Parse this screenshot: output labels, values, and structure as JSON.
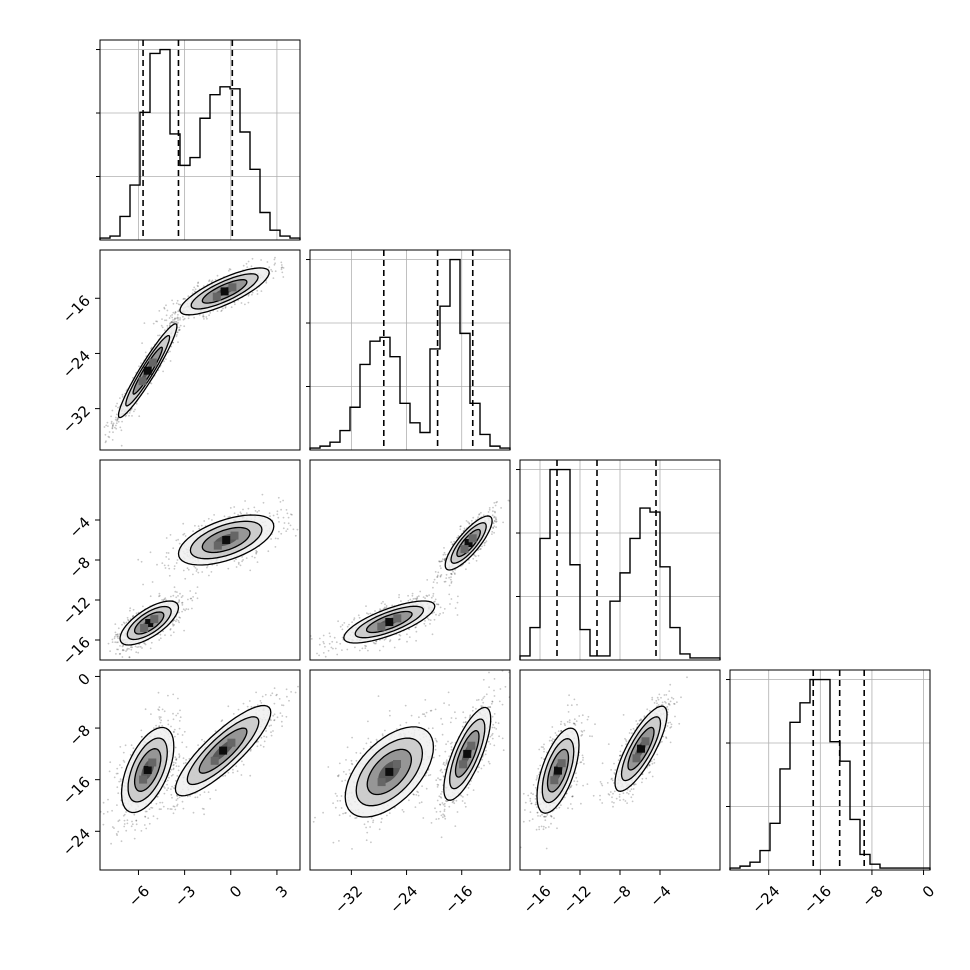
{
  "chart_data": {
    "type": "corner",
    "title": "",
    "n_params": 4,
    "params": [
      {
        "label": "",
        "range": [
          -8.5,
          4.5
        ],
        "ticks": [
          -6,
          -3,
          0,
          3
        ],
        "tick_labels": [
          "−6",
          "−3",
          "0",
          "3"
        ],
        "quantiles": [
          -5.7,
          -3.4,
          0.1
        ]
      },
      {
        "label": "",
        "range": [
          -38,
          -9
        ],
        "ticks": [
          -32,
          -24,
          -16
        ],
        "tick_labels": [
          "−32",
          "−24",
          "−16"
        ],
        "quantiles": [
          -27.3,
          -19.5,
          -14.4
        ]
      },
      {
        "label": "",
        "range": [
          -18,
          2
        ],
        "ticks": [
          -16,
          -12,
          -8,
          -4
        ],
        "tick_labels": [
          "−16",
          "−12",
          "−8",
          "−4"
        ],
        "quantiles": [
          -14.3,
          -10.3,
          -4.4
        ]
      },
      {
        "label": "",
        "range": [
          -30,
          1
        ],
        "ticks": [
          -24,
          -16,
          -8,
          0
        ],
        "tick_labels": [
          "−24",
          "−16",
          "−8",
          "0"
        ],
        "quantiles": [
          -17.1,
          -13.0,
          -9.2
        ]
      }
    ],
    "hist_grid": true,
    "hist_y_ticks_count": 3,
    "histograms": [
      {
        "param": 0,
        "bin_start": -8.5,
        "bin_width": 0.65,
        "counts": [
          1,
          2,
          12,
          28,
          65,
          95,
          97,
          54,
          38,
          42,
          62,
          74,
          78,
          77,
          55,
          36,
          14,
          5,
          2,
          1
        ]
      },
      {
        "param": 1,
        "bin_start": -38.0,
        "bin_width": 1.45,
        "counts": [
          1,
          2,
          4,
          10,
          22,
          44,
          56,
          58,
          48,
          24,
          14,
          9,
          52,
          74,
          98,
          60,
          24,
          8,
          2,
          1
        ]
      },
      {
        "param": 2,
        "bin_start": -18.0,
        "bin_width": 1.0,
        "counts": [
          2,
          16,
          60,
          94,
          94,
          47,
          15,
          2,
          2,
          29,
          43,
          60,
          75,
          73,
          46,
          16,
          3,
          1,
          1,
          1
        ]
      },
      {
        "param": 3,
        "bin_start": -30.0,
        "bin_width": 1.55,
        "counts": [
          1,
          2,
          4,
          10,
          24,
          52,
          76,
          86,
          98,
          98,
          66,
          56,
          26,
          8,
          3,
          1,
          1,
          1,
          1,
          1
        ]
      }
    ],
    "pairs": [
      {
        "x_param": 0,
        "y_param": 1,
        "components": [
          {
            "mean": [
              -5.4,
              -26.5
            ],
            "sd": [
              0.95,
              3.4
            ],
            "corr": 0.95,
            "weight": 0.5
          },
          {
            "mean": [
              -0.4,
              -15.0
            ],
            "sd": [
              1.45,
              1.7
            ],
            "corr": 0.8,
            "weight": 0.5
          }
        ]
      },
      {
        "x_param": 0,
        "y_param": 2,
        "components": [
          {
            "mean": [
              -5.3,
              -14.3
            ],
            "sd": [
              0.95,
              1.1
            ],
            "corr": 0.7,
            "weight": 0.5
          },
          {
            "mean": [
              -0.3,
              -6.0
            ],
            "sd": [
              1.55,
              1.25
            ],
            "corr": 0.55,
            "weight": 0.5
          }
        ]
      },
      {
        "x_param": 1,
        "y_param": 2,
        "components": [
          {
            "mean": [
              -26.5,
              -14.2
            ],
            "sd": [
              3.3,
              1.05
            ],
            "corr": 0.75,
            "weight": 0.5
          },
          {
            "mean": [
              -15.0,
              -6.3
            ],
            "sd": [
              1.7,
              1.35
            ],
            "corr": 0.82,
            "weight": 0.5
          }
        ]
      },
      {
        "x_param": 0,
        "y_param": 3,
        "components": [
          {
            "mean": [
              -5.4,
              -14.5
            ],
            "sd": [
              0.85,
              3.3
            ],
            "corr": 0.55,
            "weight": 0.5
          },
          {
            "mean": [
              -0.5,
              -11.5
            ],
            "sd": [
              1.55,
              3.5
            ],
            "corr": 0.85,
            "weight": 0.5
          }
        ]
      },
      {
        "x_param": 1,
        "y_param": 3,
        "components": [
          {
            "mean": [
              -26.5,
              -14.8
            ],
            "sd": [
              3.2,
              3.5
            ],
            "corr": 0.55,
            "weight": 0.5
          },
          {
            "mean": [
              -15.2,
              -12.0
            ],
            "sd": [
              1.7,
              3.6
            ],
            "corr": 0.75,
            "weight": 0.5
          }
        ]
      },
      {
        "x_param": 2,
        "y_param": 3,
        "components": [
          {
            "mean": [
              -14.2,
              -14.6
            ],
            "sd": [
              1.05,
              3.3
            ],
            "corr": 0.6,
            "weight": 0.5
          },
          {
            "mean": [
              -5.9,
              -11.2
            ],
            "sd": [
              1.3,
              3.3
            ],
            "corr": 0.8,
            "weight": 0.5
          }
        ]
      }
    ]
  }
}
